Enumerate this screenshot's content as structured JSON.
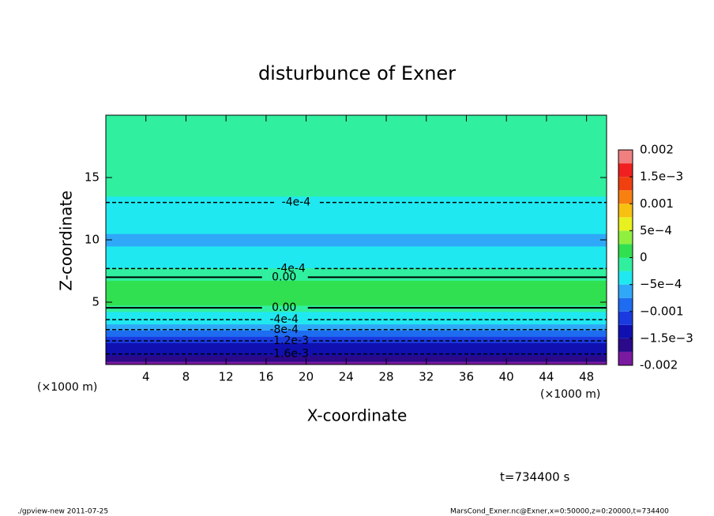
{
  "chart_data": {
    "type": "contour",
    "title": "disturbunce of Exner",
    "xlabel": "X-coordinate",
    "ylabel": "Z-coordinate",
    "x_unit": "(×1000 m)",
    "y_unit": "(×1000 m)",
    "xlim": [
      0,
      50
    ],
    "ylim": [
      0,
      20
    ],
    "xticks": [
      4,
      8,
      12,
      16,
      20,
      24,
      28,
      32,
      36,
      40,
      44,
      48
    ],
    "yticks": [
      5,
      10,
      15
    ],
    "z": [
      0,
      0.5,
      1,
      1.5,
      2,
      2.5,
      3,
      3.5,
      4,
      4.5,
      5,
      5.5,
      6,
      6.5,
      7,
      7.5,
      8,
      9,
      10,
      11,
      12,
      13,
      14,
      15,
      17,
      20
    ],
    "values": [
      -0.0019,
      -0.0017,
      -0.0015,
      -0.0013,
      -0.0011,
      -0.0009,
      -0.0007,
      -0.0005,
      -0.0003,
      -0.0001,
      0.0001,
      0.00015,
      0.0001,
      5e-05,
      -0.0001,
      -0.0002,
      -0.0004,
      -0.0005,
      -0.00055,
      -0.0005,
      -0.0004,
      -0.0003,
      -0.0002,
      -0.00015,
      -0.0001,
      -0.0001
    ],
    "contours": [
      {
        "label": "-4e-4",
        "z": 13,
        "x": 19
      },
      {
        "label": "-4e-4",
        "z": 7.7,
        "x": 18.5
      },
      {
        "label": "0.00",
        "z": 7.0,
        "x": 17.8
      },
      {
        "label": "0.00",
        "z": 4.55,
        "x": 17.8
      },
      {
        "label": "-4e-4",
        "z": 3.6,
        "x": 17.8
      },
      {
        "label": "-8e-4",
        "z": 2.8,
        "x": 17.8
      },
      {
        "label": "-1.2e-3",
        "z": 1.9,
        "x": 18.3
      },
      {
        "label": "-1.6e-3",
        "z": 0.85,
        "x": 18.3
      }
    ],
    "colorbar": {
      "levels": [
        -0.002,
        -0.00175,
        -0.0015,
        -0.00125,
        -0.001,
        -0.00075,
        -0.0005,
        -0.00025,
        0,
        0.00025,
        0.0005,
        0.00075,
        0.001,
        0.00125,
        0.0015,
        0.00175,
        0.002
      ],
      "colors": [
        "#7a1aa0",
        "#2a0a8a",
        "#1010b0",
        "#1a3ae0",
        "#1e6cf0",
        "#30a8f8",
        "#20e8f0",
        "#30f0a0",
        "#30e050",
        "#90f040",
        "#e8f020",
        "#f8c010",
        "#f88010",
        "#f04010",
        "#f02020",
        "#f08080"
      ],
      "ticks": [
        -0.002,
        {
          "value": -0.0015,
          "label": "−1.5e−3"
        },
        {
          "value": -0.001,
          "label": "−0.001"
        },
        {
          "value": -0.0005,
          "label": "−5e−4"
        },
        0,
        {
          "value": 0.0005,
          "label": "5e−4"
        },
        0.001,
        {
          "value": 0.0015,
          "label": "1.5e−3"
        },
        0.002
      ]
    },
    "time_label": "t=734400 s",
    "footer_left": "./gpview-new   2011-07-25",
    "footer_right": "MarsCond_Exner.nc@Exner,x=0:50000,z=0:20000,t=734400"
  }
}
